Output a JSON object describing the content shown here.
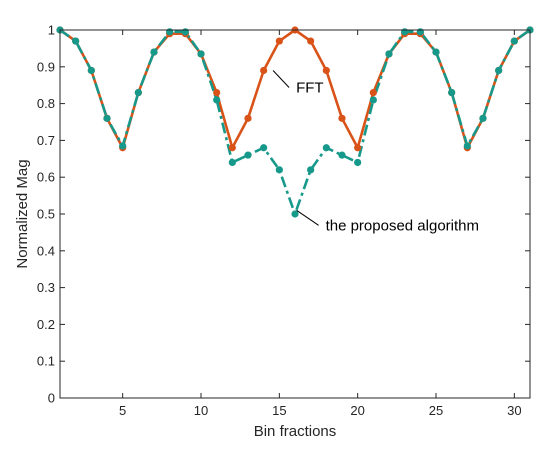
{
  "chart_data": {
    "type": "line",
    "xlabel": "Bin fractions",
    "ylabel": "Normalized Mag",
    "xlim": [
      1,
      31
    ],
    "ylim": [
      0,
      1
    ],
    "xticks": [
      5,
      10,
      15,
      20,
      25,
      30
    ],
    "yticks": [
      0,
      0.1,
      0.2,
      0.3,
      0.4,
      0.5,
      0.6,
      0.7,
      0.8,
      0.9,
      1
    ],
    "grid": false,
    "x": [
      1,
      2,
      3,
      4,
      5,
      6,
      7,
      8,
      9,
      10,
      11,
      12,
      13,
      14,
      15,
      16,
      17,
      18,
      19,
      20,
      21,
      22,
      23,
      24,
      25,
      26,
      27,
      28,
      29,
      30,
      31
    ],
    "series": [
      {
        "name": "FFT",
        "color": "#D95319",
        "style": "solid",
        "values": [
          1.0,
          0.97,
          0.89,
          0.76,
          0.68,
          0.83,
          0.94,
          0.99,
          0.99,
          0.935,
          0.83,
          0.68,
          0.76,
          0.89,
          0.97,
          1.0,
          0.97,
          0.89,
          0.76,
          0.68,
          0.83,
          0.935,
          0.99,
          0.99,
          0.94,
          0.83,
          0.68,
          0.76,
          0.89,
          0.97,
          1.0
        ]
      },
      {
        "name": "the proposed algorithm",
        "color": "#16998A",
        "style": "dashdot",
        "values": [
          1.0,
          0.97,
          0.89,
          0.76,
          0.685,
          0.83,
          0.94,
          0.995,
          0.995,
          0.935,
          0.81,
          0.64,
          0.66,
          0.68,
          0.62,
          0.5,
          0.62,
          0.68,
          0.66,
          0.64,
          0.81,
          0.935,
          0.995,
          0.995,
          0.94,
          0.83,
          0.685,
          0.76,
          0.89,
          0.97,
          1.0
        ]
      }
    ],
    "annotations": [
      {
        "text": "FFT",
        "series": "FFT",
        "x": 14.6,
        "y": 0.89
      },
      {
        "text": "the proposed algorithm",
        "series": "the proposed algorithm",
        "x": 16.1,
        "y": 0.51
      }
    ]
  }
}
